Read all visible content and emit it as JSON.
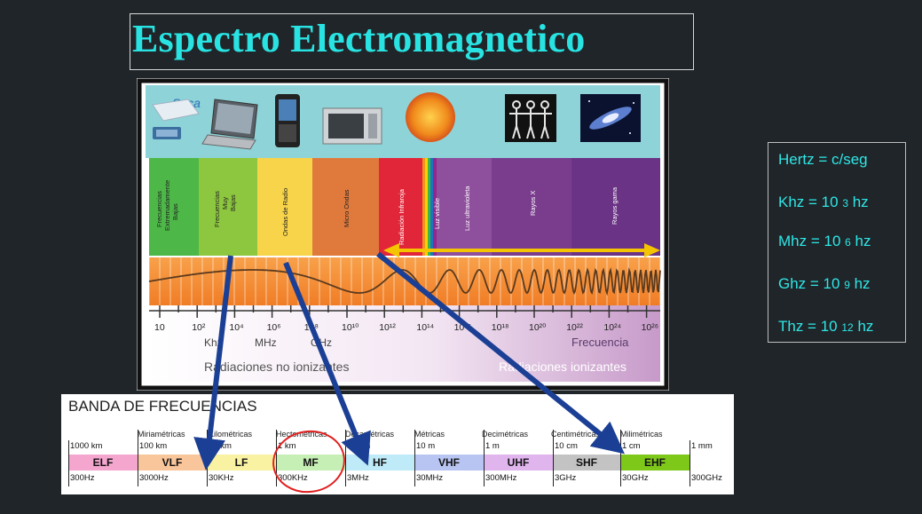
{
  "title": "Espectro Electromagnetico",
  "spectrum": {
    "logo_text": "Seca",
    "regions": [
      {
        "label": "Frecuencias Extremadamente Bajas",
        "color": "#4db848"
      },
      {
        "label": "Frecuencias Muy Bajas",
        "color": "#8dc63f"
      },
      {
        "label": "Ondas de Radio",
        "color": "#f7d44a"
      },
      {
        "label": "Micro Ondas",
        "color": "#e07a3c"
      },
      {
        "label": "Radiación Infraroja",
        "color": "#e2263a"
      },
      {
        "label": "Luz visible",
        "color": "#f2f2f2"
      },
      {
        "label": "Luz ultravioleta",
        "color": "#8e4f9c"
      },
      {
        "label": "Rayos X",
        "color": "#7a3d8e"
      },
      {
        "label": "Rayos gama",
        "color": "#6b3385"
      }
    ],
    "ticks": [
      "10",
      "10²",
      "10⁴",
      "10⁶",
      "10⁸",
      "10¹⁰",
      "10¹²",
      "10¹⁴",
      "10¹⁶",
      "10¹⁸",
      "10²⁰",
      "10²²",
      "10²⁴",
      "10²⁶"
    ],
    "unit_labels": [
      "Khz",
      "MHz",
      "GHz"
    ],
    "frequency_label": "Frecuencia",
    "non_ionizing_label": "Radiaciones no ionizantes",
    "ionizing_label": "Radiaciones ionizantes"
  },
  "formulas": [
    {
      "text": "Hertz = c/seg",
      "base": "",
      "exp": ""
    },
    {
      "text": "Khz = 10 ",
      "base": "",
      "exp": "3",
      "tail": " hz"
    },
    {
      "text": "Mhz =  10 ",
      "base": "",
      "exp": "6",
      "tail": " hz"
    },
    {
      "text": "Ghz  = 10 ",
      "base": "",
      "exp": "9",
      "tail": " hz"
    },
    {
      "text": "Thz = 10 ",
      "base": "",
      "exp": "12",
      "tail": " hz"
    }
  ],
  "bands": {
    "title": "BANDA DE FRECUENCIAS",
    "names": [
      "",
      "Miriamétricas",
      "Kilométricas",
      "Hectométricas",
      "Decamétricas",
      "Métricas",
      "Decimétricas",
      "Centimétricas",
      "Milimétricas"
    ],
    "lengths": [
      "1000 km",
      "100 km",
      "10 km",
      "1 km",
      "100 m",
      "10 m",
      "1 m",
      "10 cm",
      "1 cm",
      "1 mm"
    ],
    "segments": [
      {
        "label": "ELF",
        "color": "#f4a6cf"
      },
      {
        "label": "VLF",
        "color": "#f9c59a"
      },
      {
        "label": "LF",
        "color": "#f8f2a2"
      },
      {
        "label": "MF",
        "color": "#c6efb6"
      },
      {
        "label": "HF",
        "color": "#bfeaf7"
      },
      {
        "label": "VHF",
        "color": "#b8c5f2"
      },
      {
        "label": "UHF",
        "color": "#e0b5ee"
      },
      {
        "label": "SHF",
        "color": "#c3c3c3"
      },
      {
        "label": "EHF",
        "color": "#7ec81a"
      }
    ],
    "freqs": [
      "300Hz",
      "3000Hz",
      "30KHz",
      "300KHz",
      "3MHz",
      "30MHz",
      "300MHz",
      "3GHz",
      "30GHz",
      "300GHz"
    ]
  }
}
